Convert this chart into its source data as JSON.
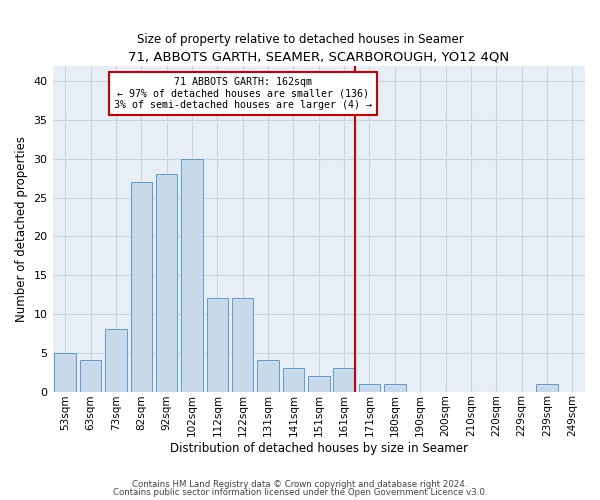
{
  "title": "71, ABBOTS GARTH, SEAMER, SCARBOROUGH, YO12 4QN",
  "subtitle": "Size of property relative to detached houses in Seamer",
  "xlabel": "Distribution of detached houses by size in Seamer",
  "ylabel": "Number of detached properties",
  "bin_labels": [
    "53sqm",
    "63sqm",
    "73sqm",
    "82sqm",
    "92sqm",
    "102sqm",
    "112sqm",
    "122sqm",
    "131sqm",
    "141sqm",
    "151sqm",
    "161sqm",
    "171sqm",
    "180sqm",
    "190sqm",
    "200sqm",
    "210sqm",
    "220sqm",
    "229sqm",
    "239sqm",
    "249sqm"
  ],
  "bar_values": [
    5,
    4,
    8,
    27,
    28,
    30,
    12,
    12,
    4,
    3,
    2,
    3,
    1,
    1,
    0,
    0,
    0,
    0,
    0,
    1,
    0
  ],
  "bar_color": "#c8d9ea",
  "bar_edge_color": "#5b9bd5",
  "vline_x_index": 11,
  "vline_color": "#cc0000",
  "annotation_text": "71 ABBOTS GARTH: 162sqm\n← 97% of detached houses are smaller (136)\n3% of semi-detached houses are larger (4) →",
  "annotation_box_color": "#cc0000",
  "ylim": [
    0,
    42
  ],
  "yticks": [
    0,
    5,
    10,
    15,
    20,
    25,
    30,
    35,
    40
  ],
  "grid_color": "#c8d4e0",
  "bg_color": "#e8eef5",
  "footer_line1": "Contains HM Land Registry data © Crown copyright and database right 2024.",
  "footer_line2": "Contains public sector information licensed under the Open Government Licence v3.0."
}
